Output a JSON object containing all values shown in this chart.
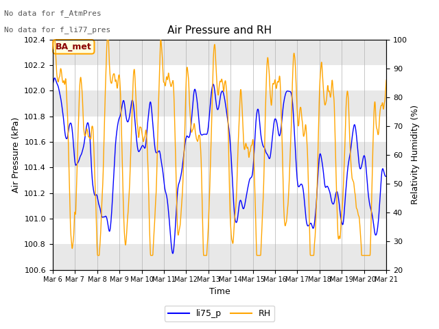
{
  "title": "Air Pressure and RH",
  "xlabel": "Time",
  "ylabel_left": "Air Pressure (kPa)",
  "ylabel_right": "Relativity Humidity (%)",
  "annotation_line1": "No data for f_AtmPres",
  "annotation_line2": "No data for f_li77_pres",
  "box_label": "BA_met",
  "legend_labels": [
    "li75_p",
    "RH"
  ],
  "line_colors": [
    "blue",
    "orange"
  ],
  "ylim_left": [
    100.6,
    102.4
  ],
  "ylim_right": [
    20,
    100
  ],
  "yticks_left": [
    100.6,
    100.8,
    101.0,
    101.2,
    101.4,
    101.6,
    101.8,
    102.0,
    102.2,
    102.4
  ],
  "yticks_right": [
    20,
    30,
    40,
    50,
    60,
    70,
    80,
    90,
    100
  ],
  "xtick_labels": [
    "Mar 6",
    "Mar 7",
    "Mar 8",
    "Mar 9",
    "Mar 10",
    "Mar 11",
    "Mar 12",
    "Mar 13",
    "Mar 14",
    "Mar 15",
    "Mar 16",
    "Mar 17",
    "Mar 18",
    "Mar 19",
    "Mar 20",
    "Mar 21"
  ],
  "background_color": "#ffffff",
  "band_colors": [
    "#e8e8e8",
    "#ffffff"
  ],
  "n_points": 1500
}
